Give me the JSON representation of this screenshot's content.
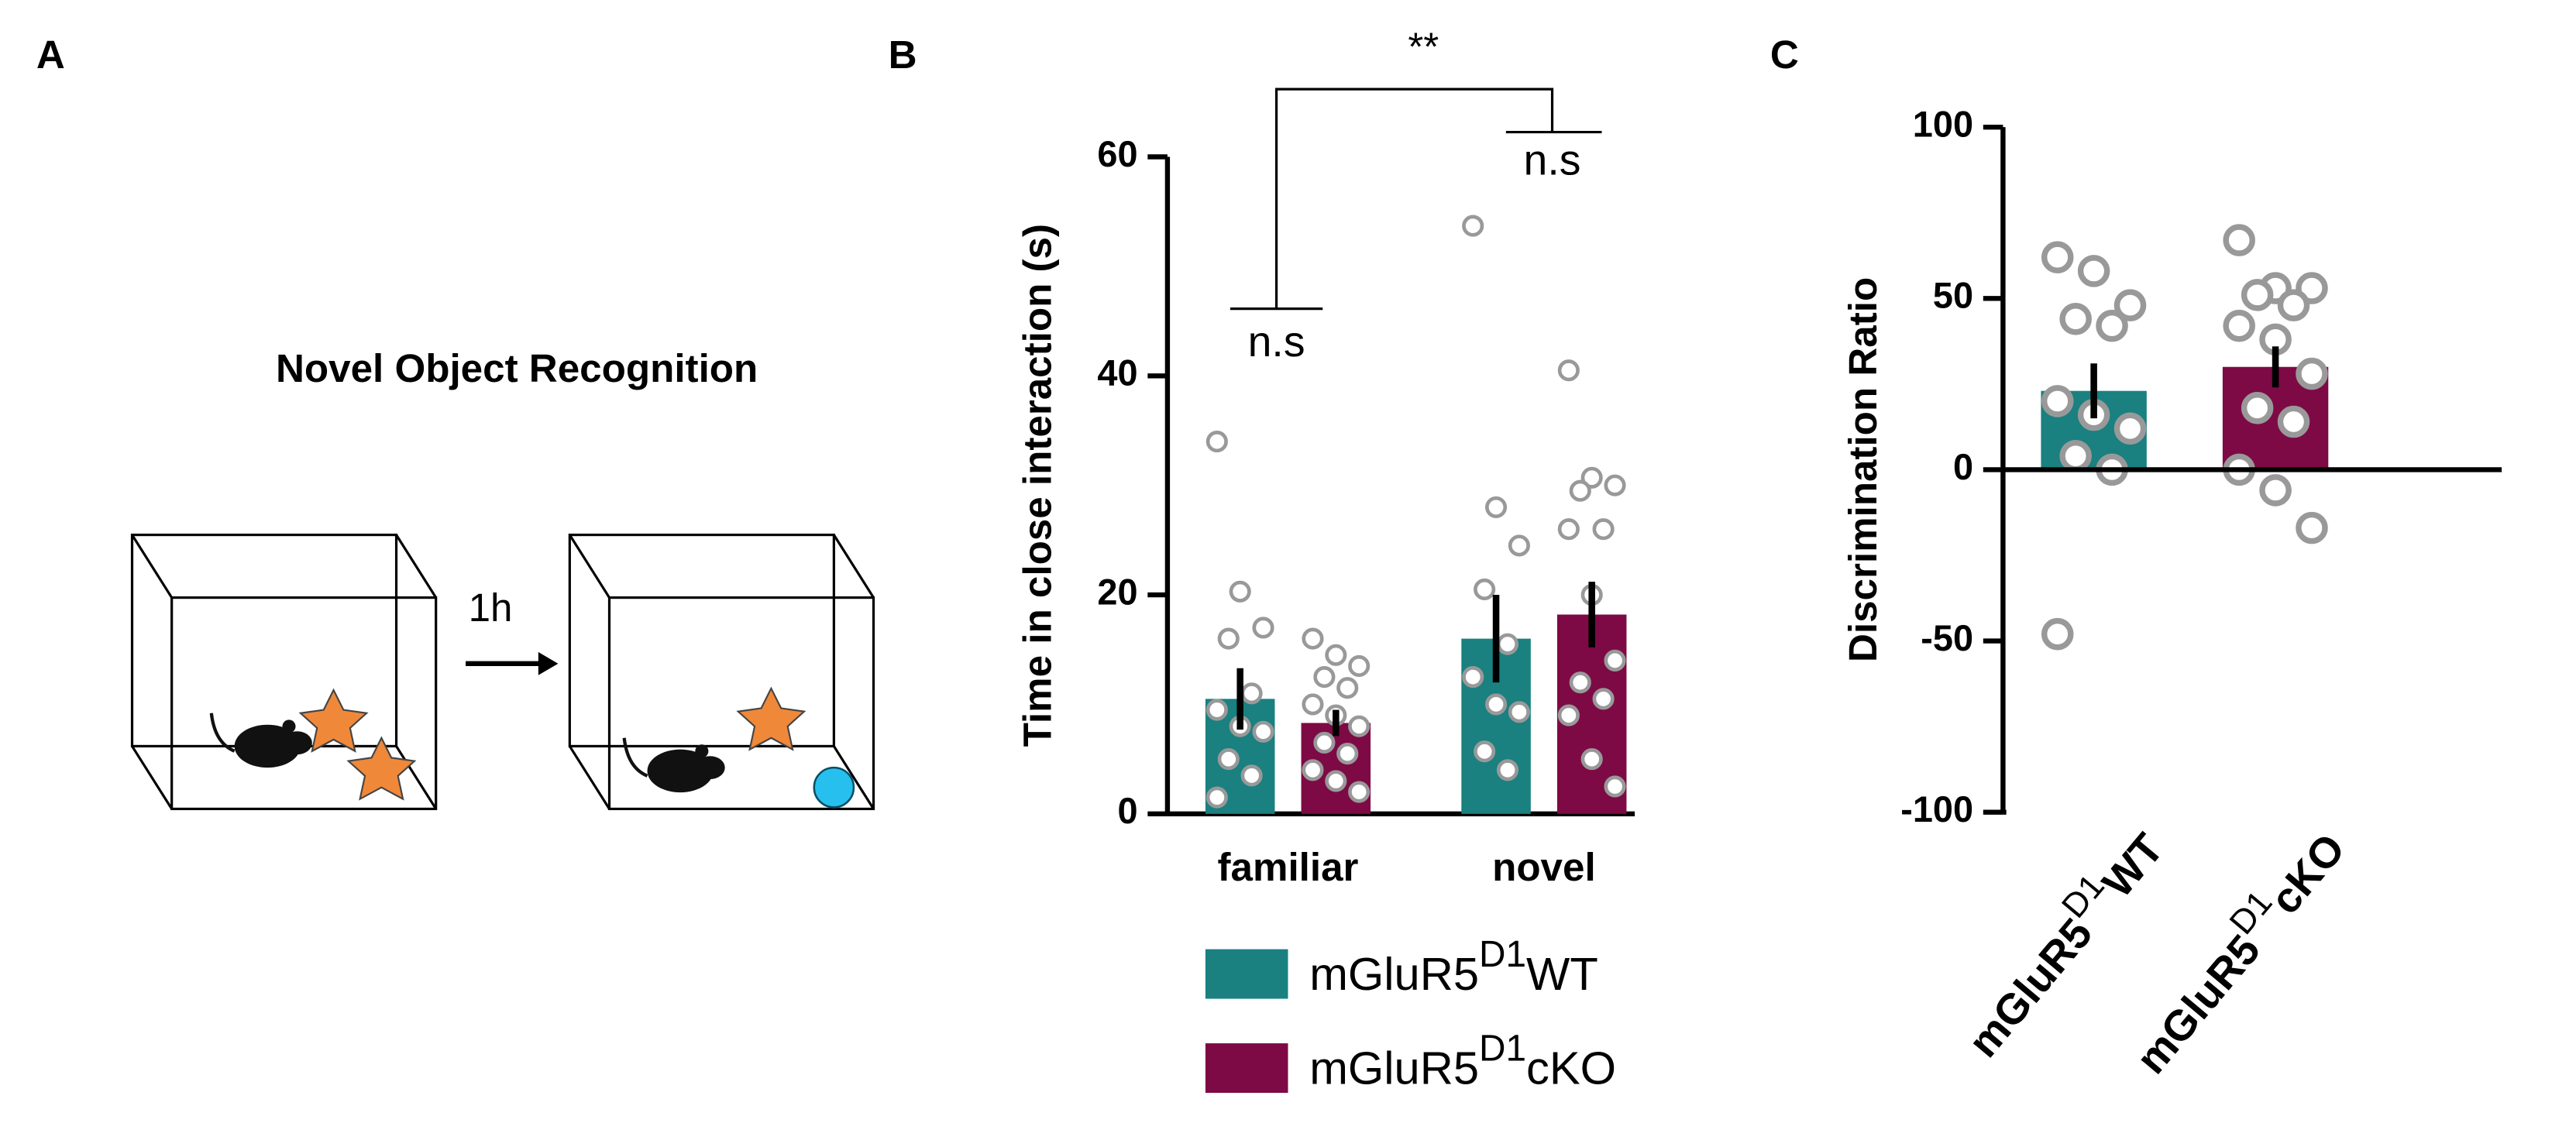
{
  "panel_labels": [
    "A",
    "B",
    "C"
  ],
  "diagram": {
    "title": "Novel Object Recognition",
    "delay": "1h"
  },
  "chart_data": [
    {
      "type": "bar",
      "ylabel": "Time in close interaction (s)",
      "categories": [
        "familiar",
        "novel"
      ],
      "ylim": [
        0,
        60
      ],
      "yticks": [
        0,
        20,
        40,
        60
      ],
      "annotations": [
        "**",
        "n.s",
        "n.s"
      ],
      "series": [
        {
          "name_parts": [
            "mGluR5",
            "D1",
            "WT"
          ],
          "color": "#1a8080",
          "values": [
            10.5,
            16
          ],
          "errors": [
            2.8,
            4
          ],
          "points": [
            [
              34,
              20.3,
              17,
              16,
              11,
              9.5,
              8,
              7.5,
              5,
              3.5,
              1.5
            ],
            [
              53.7,
              28,
              24.5,
              20.5,
              15.5,
              12.5,
              10,
              9.3,
              5.7,
              4
            ]
          ]
        },
        {
          "name_parts": [
            "mGluR5",
            "D1",
            "cKO"
          ],
          "color": "#7d0a45",
          "values": [
            8.3,
            18.2
          ],
          "errors": [
            1.2,
            3
          ],
          "points": [
            [
              16,
              14.5,
              13.5,
              12.5,
              11.5,
              10,
              9,
              8,
              6.5,
              5.5,
              4,
              3,
              2
            ],
            [
              40.5,
              30.7,
              30,
              29.5,
              26,
              26,
              20,
              14,
              12,
              10.5,
              9,
              5,
              2.5
            ]
          ]
        }
      ]
    },
    {
      "type": "bar",
      "ylabel": "Discrimination Ratio",
      "categories": [
        [
          "mGluR5",
          "D1",
          "WT"
        ],
        [
          "mGluR5",
          "D1",
          "cKO"
        ]
      ],
      "colors": [
        "#1a8080",
        "#7d0a45"
      ],
      "values": [
        23,
        30
      ],
      "errors": [
        8,
        6
      ],
      "points": [
        [
          62,
          58,
          48,
          44,
          42,
          20,
          16,
          12,
          4,
          0,
          -48
        ],
        [
          67,
          53,
          53,
          51,
          48,
          42,
          38,
          28,
          18,
          14,
          0,
          -6,
          -17
        ]
      ],
      "ylim": [
        -100,
        100
      ],
      "yticks": [
        -100,
        -50,
        0,
        50,
        100
      ]
    }
  ]
}
